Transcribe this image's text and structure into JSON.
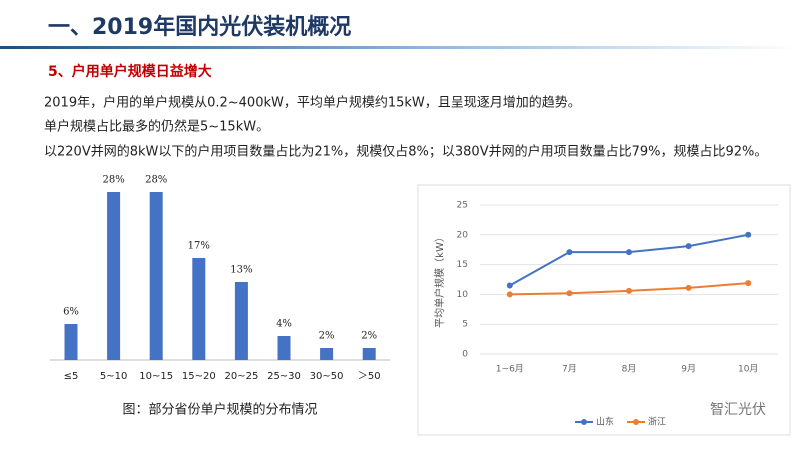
{
  "header": {
    "title": "一、2019年国内光伏装机概况",
    "subtitle": "5、户用单户规模日益增大"
  },
  "body": {
    "lines": [
      "2019年，户用的单户规模从0.2~400kW，平均单户规模约15kW，且呈现逐月增加的趋势。",
      "单户规模占比最多的仍然是5~15kW。",
      "以220V并网的8kW以下的户用项目数量占比为21%，规模仅占8%；以380V并网的户用项目数量占比79%，规模占比92%。"
    ]
  },
  "chart_data": [
    {
      "type": "bar",
      "caption": "图：部分省份单户规模的分布情况",
      "categories": [
        "≤5",
        "5~10",
        "10~15",
        "15~20",
        "20~25",
        "25~30",
        "30~50",
        "＞50"
      ],
      "values": [
        6,
        28,
        28,
        17,
        13,
        4,
        2,
        2
      ],
      "value_labels": [
        "6%",
        "28%",
        "28%",
        "17%",
        "13%",
        "4%",
        "2%",
        "2%"
      ],
      "color": "#4472c4"
    },
    {
      "type": "line",
      "ylabel": "平均单户规模（kW）",
      "categories": [
        "1~6月",
        "7月",
        "8月",
        "9月",
        "10月"
      ],
      "series": [
        {
          "name": "山东",
          "color": "#4472c4",
          "values": [
            11.5,
            17.1,
            17.1,
            18.1,
            20
          ]
        },
        {
          "name": "浙江",
          "color": "#ed7d31",
          "values": [
            10,
            10.2,
            10.6,
            11.1,
            11.9
          ]
        }
      ],
      "ylim": [
        0,
        25
      ],
      "yticks": [
        0,
        5,
        10,
        15,
        20,
        25
      ],
      "grid": true,
      "legend": "bottom"
    }
  ],
  "watermark": "智汇光伏"
}
